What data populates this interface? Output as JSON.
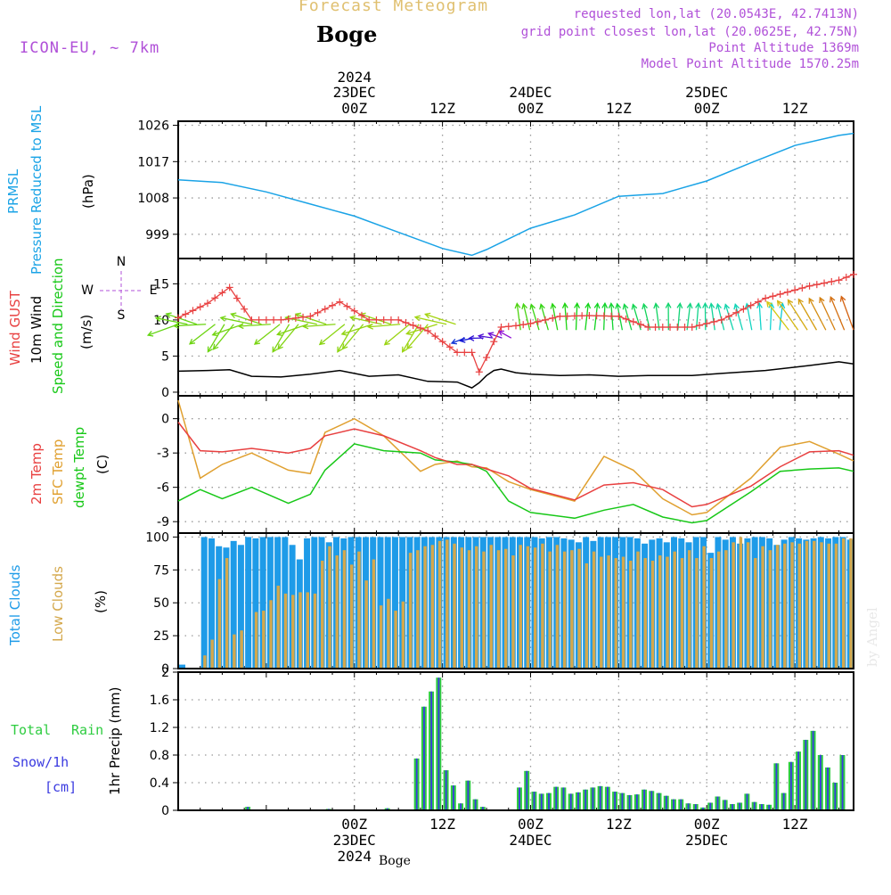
{
  "header": {
    "product": "Forecast Meteogram",
    "location": "Boge",
    "model": "ICON-EU, ~ 7km",
    "requested": "requested lon,lat (20.0543E, 42.7413N)",
    "gridpoint": "grid point closest lon,lat (20.0625E, 42.75N)",
    "point_alt": "Point Altitude 1369m",
    "model_alt": "Model Point Altitude 1570.25m",
    "credit": "by Angel",
    "bottom_location": "Boge"
  },
  "time_axis": {
    "top_year": "2024",
    "bottom_year": "2024",
    "labels": [
      {
        "hour": 24,
        "top": "23DEC",
        "bottom": "00Z",
        "day": true
      },
      {
        "hour": 36,
        "top": "",
        "bottom": "12Z",
        "day": false
      },
      {
        "hour": 48,
        "top": "24DEC",
        "bottom": "00Z",
        "day": true
      },
      {
        "hour": 60,
        "top": "",
        "bottom": "12Z",
        "day": false
      },
      {
        "hour": 72,
        "top": "25DEC",
        "bottom": "00Z",
        "day": true
      },
      {
        "hour": 84,
        "top": "",
        "bottom": "12Z",
        "day": false
      }
    ]
  },
  "colors": {
    "pressure": "#1aa3e6",
    "gust": "#e84040",
    "wind": "#000000",
    "temp2m": "#e84040",
    "sfc": "#e0a030",
    "dewpt": "#18c818",
    "total_clouds": "#1e9be8",
    "low_clouds": "#d4a84c",
    "rain": "#2ecc40",
    "snow": "#3a3ae0",
    "header_accent": "#b050d8",
    "header_title": "#e0c070"
  },
  "panels": {
    "pressure": {
      "labels": [
        "PRMSL",
        "Pressure Reduced to MSL",
        "(hPa)"
      ],
      "ticks": [
        999,
        1008,
        1017,
        1026
      ]
    },
    "wind": {
      "labels": [
        "Wind GUST",
        "10m Wind",
        "Speed and Direction",
        "(m/s)"
      ],
      "ticks": [
        0,
        5,
        10,
        15
      ],
      "compass": {
        "n": "N",
        "s": "S",
        "e": "E",
        "w": "W"
      }
    },
    "temp": {
      "labels": [
        "2m Temp",
        "SFC Temp",
        "dewpt Temp",
        "(C)"
      ],
      "ticks": [
        -9,
        -6,
        -3,
        0
      ]
    },
    "clouds": {
      "labels": [
        "Total Clouds",
        "Low Clouds",
        "(%)"
      ],
      "ticks": [
        0,
        25,
        50,
        75,
        100
      ]
    },
    "precip": {
      "labels": [
        "Total",
        "Rain",
        "Snow/1h",
        "[cm]",
        "1hr Precip (mm)"
      ],
      "ticks": [
        0,
        0.4,
        0.8,
        1.2,
        1.6,
        2
      ]
    }
  },
  "chart_data": [
    {
      "type": "line",
      "name": "pressure",
      "x": [
        0,
        6,
        12,
        18,
        24,
        30,
        36,
        40,
        42,
        48,
        54,
        60,
        66,
        72,
        78,
        84,
        90,
        92
      ],
      "y": [
        1012.5,
        1011.8,
        1009.5,
        1006.5,
        1003.5,
        999.5,
        995.5,
        993.8,
        995.2,
        1000.5,
        1003.8,
        1008.4,
        1009.1,
        1012.2,
        1016.7,
        1021.0,
        1023.5,
        1024.0
      ],
      "ylim": [
        993,
        1027
      ]
    },
    {
      "type": "line",
      "name": "wind",
      "x": [
        0,
        4,
        7,
        10,
        14,
        18,
        22,
        26,
        30,
        34,
        38,
        40,
        41,
        42,
        43,
        44,
        46,
        48,
        52,
        56,
        60,
        64,
        70,
        74,
        80,
        86,
        90,
        92
      ],
      "gust": [
        10.3,
        12.3,
        14.5,
        10.0,
        10.0,
        10.5,
        12.5,
        10.0,
        10.0,
        8.5,
        5.5,
        5.5,
        2.8,
        4.8,
        7.0,
        9.0,
        9.2,
        9.5,
        10.5,
        10.6,
        10.5,
        9.0,
        9.0,
        10.0,
        13.0,
        14.7,
        15.5,
        16.3
      ],
      "speed": [
        2.9,
        3.0,
        3.1,
        2.2,
        2.1,
        2.5,
        3.0,
        2.2,
        2.4,
        1.5,
        1.4,
        0.6,
        1.3,
        2.3,
        3.0,
        3.2,
        2.7,
        2.5,
        2.3,
        2.4,
        2.2,
        2.3,
        2.3,
        2.6,
        3.0,
        3.7,
        4.2,
        3.9
      ],
      "ylim": [
        -0.5,
        18.5
      ],
      "arrows": {
        "x_start": 0,
        "x_end": 92,
        "count": 74
      }
    },
    {
      "type": "line",
      "name": "temperature",
      "x": [
        0,
        3,
        6,
        10,
        15,
        18,
        20,
        24,
        28,
        33,
        35,
        38,
        40,
        42,
        45,
        48,
        54,
        58,
        62,
        66,
        70,
        72,
        78,
        82,
        86,
        90,
        92
      ],
      "t2m": [
        -0.3,
        -2.8,
        -2.9,
        -2.6,
        -3.0,
        -2.6,
        -1.5,
        -0.9,
        -1.5,
        -2.8,
        -3.4,
        -4.0,
        -4.0,
        -4.4,
        -5.0,
        -6.1,
        -7.1,
        -5.8,
        -5.6,
        -6.2,
        -7.7,
        -7.5,
        -5.9,
        -4.2,
        -2.9,
        -2.8,
        -3.2
      ],
      "sfc": [
        1.6,
        -5.2,
        -4.0,
        -3.0,
        -4.5,
        -4.8,
        -1.2,
        0.0,
        -1.5,
        -4.6,
        -4.0,
        -3.7,
        -4.2,
        -4.3,
        -5.5,
        -6.2,
        -7.2,
        -3.3,
        -4.5,
        -7.0,
        -8.4,
        -8.2,
        -5.2,
        -2.5,
        -2.0,
        -3.1,
        -3.7
      ],
      "dewpt": [
        -7.2,
        -6.2,
        -7.0,
        -6.0,
        -7.4,
        -6.6,
        -4.5,
        -2.2,
        -2.8,
        -3.0,
        -3.6,
        -3.8,
        -4.0,
        -4.6,
        -7.2,
        -8.2,
        -8.7,
        -8.0,
        -7.5,
        -8.6,
        -9.1,
        -8.9,
        -6.4,
        -4.6,
        -4.4,
        -4.3,
        -4.6
      ],
      "ylim": [
        -10,
        2
      ]
    },
    {
      "type": "bar",
      "name": "clouds",
      "x_start": 0,
      "x_step": 1,
      "total": [
        3,
        0,
        0,
        100,
        99,
        93,
        92,
        97,
        94,
        100,
        99,
        100,
        100,
        100,
        100,
        94,
        83,
        99,
        100,
        100,
        96,
        100,
        99,
        100,
        100,
        100,
        100,
        100,
        100,
        100,
        100,
        100,
        100,
        100,
        100,
        100,
        100,
        100,
        100,
        100,
        100,
        100,
        100,
        100,
        100,
        100,
        100,
        100,
        100,
        99,
        100,
        100,
        99,
        98,
        96,
        100,
        97,
        100,
        100,
        100,
        100,
        100,
        99,
        95,
        98,
        99,
        96,
        100,
        99,
        96,
        100,
        100,
        88,
        100,
        98,
        100,
        95,
        99,
        100,
        100,
        99,
        94,
        98,
        100,
        99,
        98,
        99,
        100,
        99,
        100,
        100,
        98
      ],
      "low": [
        0,
        0,
        0,
        10,
        22,
        68,
        84,
        26,
        29,
        0,
        43,
        44,
        52,
        63,
        57,
        56,
        58,
        58,
        57,
        82,
        93,
        86,
        90,
        79,
        89,
        67,
        83,
        48,
        53,
        44,
        51,
        88,
        90,
        93,
        94,
        97,
        98,
        95,
        92,
        90,
        93,
        89,
        94,
        90,
        91,
        86,
        94,
        93,
        92,
        95,
        89,
        94,
        89,
        90,
        91,
        80,
        89,
        85,
        86,
        84,
        85,
        82,
        89,
        84,
        82,
        86,
        85,
        89,
        84,
        90,
        84,
        93,
        84,
        89,
        90,
        96,
        100,
        96,
        84,
        93,
        90,
        94,
        95,
        96,
        95,
        97,
        97,
        96,
        95,
        95,
        99,
        99
      ],
      "ylim": [
        0,
        103
      ]
    },
    {
      "type": "bar",
      "name": "precip",
      "x_start": 0,
      "x_step": 1,
      "total": [
        0,
        0,
        0,
        0,
        0,
        0,
        0,
        0,
        0,
        0.05,
        0,
        0,
        0,
        0,
        0,
        0,
        0,
        0,
        0,
        0,
        0.02,
        0.01,
        0,
        0,
        0,
        0,
        0,
        0,
        0.03,
        0,
        0,
        0,
        0.75,
        1.5,
        1.72,
        1.92,
        0.58,
        0.36,
        0.1,
        0.43,
        0.16,
        0.05,
        0.01,
        0,
        0.01,
        0.01,
        0.33,
        0.57,
        0.27,
        0.24,
        0.25,
        0.34,
        0.33,
        0.24,
        0.26,
        0.3,
        0.33,
        0.35,
        0.34,
        0.27,
        0.25,
        0.22,
        0.23,
        0.3,
        0.28,
        0.25,
        0.21,
        0.16,
        0.16,
        0.1,
        0.09,
        0.04,
        0.11,
        0.2,
        0.15,
        0.09,
        0.11,
        0.24,
        0.12,
        0.09,
        0.08,
        0.68,
        0.25,
        0.7,
        0.85,
        1.02,
        1.15,
        0.8,
        0.62,
        0.4,
        0.8
      ],
      "ylim": [
        0,
        2
      ]
    }
  ]
}
